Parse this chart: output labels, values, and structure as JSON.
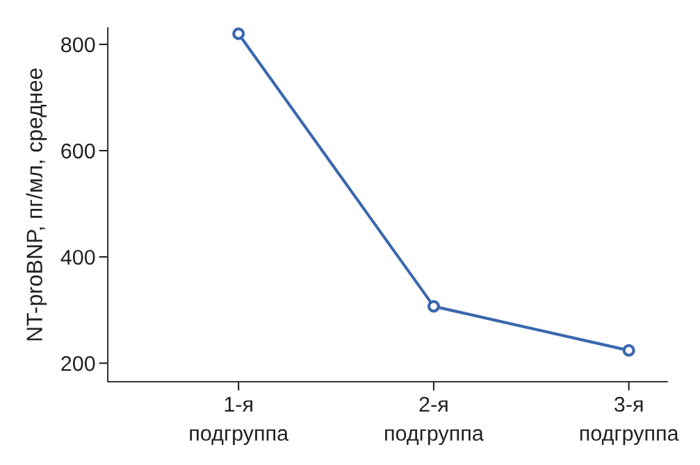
{
  "chart_data": {
    "type": "line",
    "ylabel": "NT-proBNP, пг/мл, среднее",
    "categories": [
      "1-я\nподгруппа",
      "2-я\nподгруппа",
      "3-я\nподгруппа"
    ],
    "series": [
      {
        "color": "#3a67ae",
        "values": [
          820,
          307,
          224
        ]
      }
    ],
    "ylim": [
      165,
      831
    ],
    "yticks": [
      200,
      400,
      600,
      800
    ],
    "grid": false,
    "legend": false,
    "marker": "circle",
    "line_style": "solid"
  }
}
